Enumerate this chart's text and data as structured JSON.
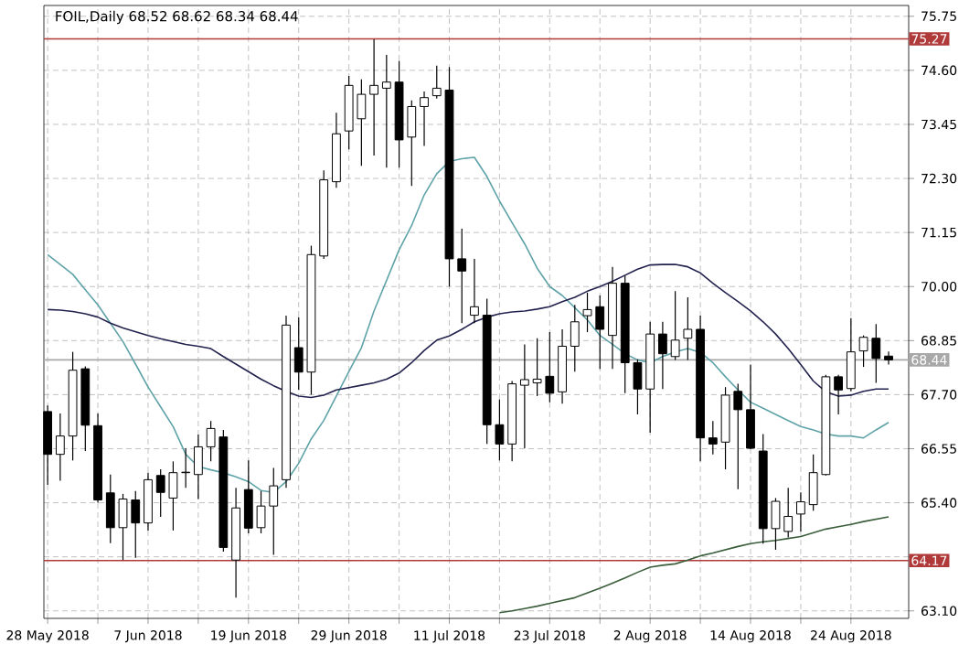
{
  "chart_data": {
    "type": "candlestick",
    "title": "FOIL,Daily 68.52 68.62 68.34 68.44",
    "categories": [
      "28 May 2018",
      null,
      null,
      null,
      null,
      null,
      null,
      null,
      "7 Jun 2018",
      null,
      null,
      null,
      null,
      null,
      null,
      null,
      "19 Jun 2018",
      null,
      null,
      null,
      null,
      null,
      null,
      null,
      "29 Jun 2018",
      null,
      null,
      null,
      null,
      null,
      null,
      null,
      "11 Jul 2018",
      null,
      null,
      null,
      null,
      null,
      null,
      null,
      "23 Jul 2018",
      null,
      null,
      null,
      null,
      null,
      null,
      null,
      "2 Aug 2018",
      null,
      null,
      null,
      null,
      null,
      null,
      null,
      "14 Aug 2018",
      null,
      null,
      null,
      null,
      null,
      null,
      null,
      "24 Aug 2018",
      null,
      null,
      null
    ],
    "ohlc": [
      [
        67.34,
        67.47,
        65.78,
        66.43
      ],
      [
        66.43,
        67.3,
        65.87,
        66.82
      ],
      [
        66.82,
        68.61,
        66.3,
        68.22
      ],
      [
        68.25,
        68.3,
        66.5,
        67.05
      ],
      [
        67.04,
        67.3,
        65.4,
        65.46
      ],
      [
        65.61,
        66.0,
        64.54,
        64.87
      ],
      [
        64.87,
        65.59,
        64.18,
        65.48
      ],
      [
        65.46,
        65.65,
        64.23,
        64.97
      ],
      [
        64.97,
        66.04,
        64.81,
        65.89
      ],
      [
        65.98,
        66.11,
        65.1,
        65.62
      ],
      [
        65.5,
        66.28,
        64.81,
        66.04
      ],
      [
        66.04,
        66.56,
        65.72,
        66.05
      ],
      [
        66.0,
        66.85,
        65.48,
        66.59
      ],
      [
        66.59,
        67.14,
        66.28,
        66.98
      ],
      [
        66.8,
        66.95,
        64.36,
        64.45
      ],
      [
        64.18,
        65.72,
        63.38,
        65.29
      ],
      [
        65.68,
        66.3,
        64.75,
        64.86
      ],
      [
        64.87,
        65.65,
        64.75,
        65.33
      ],
      [
        65.33,
        66.14,
        64.29,
        65.76
      ],
      [
        65.89,
        69.38,
        65.72,
        69.18
      ],
      [
        68.7,
        69.35,
        67.8,
        68.18
      ],
      [
        68.18,
        70.87,
        67.7,
        70.68
      ],
      [
        70.65,
        72.47,
        70.59,
        72.27
      ],
      [
        72.23,
        73.7,
        72.1,
        73.25
      ],
      [
        73.31,
        74.48,
        72.92,
        74.28
      ],
      [
        73.57,
        74.41,
        72.57,
        74.09
      ],
      [
        74.09,
        75.26,
        72.79,
        74.28
      ],
      [
        74.22,
        74.93,
        72.53,
        74.35
      ],
      [
        74.35,
        74.8,
        72.53,
        73.12
      ],
      [
        73.18,
        73.96,
        72.14,
        73.83
      ],
      [
        73.83,
        74.15,
        72.99,
        74.02
      ],
      [
        74.06,
        74.7,
        74.0,
        74.22
      ],
      [
        74.18,
        74.67,
        70.0,
        70.59
      ],
      [
        70.59,
        71.23,
        69.22,
        70.33
      ],
      [
        69.39,
        70.59,
        69.22,
        69.57
      ],
      [
        69.39,
        69.74,
        66.65,
        67.06
      ],
      [
        67.06,
        67.6,
        66.3,
        66.65
      ],
      [
        66.65,
        67.99,
        66.28,
        67.93
      ],
      [
        67.9,
        68.77,
        66.56,
        68.02
      ],
      [
        67.95,
        68.9,
        67.67,
        68.03
      ],
      [
        68.09,
        69.03,
        67.54,
        67.73
      ],
      [
        67.76,
        69.09,
        67.51,
        68.73
      ],
      [
        68.73,
        69.61,
        68.19,
        69.25
      ],
      [
        69.38,
        69.87,
        69.03,
        69.51
      ],
      [
        69.57,
        69.81,
        68.25,
        69.09
      ],
      [
        68.96,
        70.42,
        68.25,
        70.07
      ],
      [
        70.07,
        70.23,
        67.73,
        68.38
      ],
      [
        68.38,
        68.45,
        67.28,
        67.82
      ],
      [
        67.82,
        69.25,
        66.89,
        68.99
      ],
      [
        68.99,
        69.25,
        67.82,
        68.57
      ],
      [
        68.51,
        69.9,
        68.44,
        68.86
      ],
      [
        68.9,
        69.77,
        68.44,
        69.09
      ],
      [
        69.09,
        69.38,
        66.28,
        66.78
      ],
      [
        66.78,
        67.14,
        66.43,
        66.65
      ],
      [
        66.69,
        67.86,
        66.11,
        67.69
      ],
      [
        67.77,
        67.93,
        65.69,
        67.38
      ],
      [
        67.38,
        68.34,
        66.54,
        66.56
      ],
      [
        66.5,
        66.86,
        64.53,
        64.85
      ],
      [
        64.85,
        65.5,
        64.4,
        65.43
      ],
      [
        64.79,
        65.72,
        64.66,
        65.11
      ],
      [
        65.16,
        65.62,
        64.79,
        65.42
      ],
      [
        65.36,
        66.43,
        65.23,
        66.04
      ],
      [
        66.0,
        68.12,
        65.98,
        68.08
      ],
      [
        68.08,
        68.12,
        67.28,
        67.8
      ],
      [
        67.83,
        69.33,
        67.77,
        68.61
      ],
      [
        68.63,
        68.96,
        68.29,
        68.92
      ],
      [
        68.9,
        69.2,
        67.95,
        68.47
      ],
      [
        68.52,
        68.62,
        68.34,
        68.44
      ]
    ],
    "series": [
      {
        "type": "line",
        "color": "#5fa3a8",
        "values": [
          70.68,
          70.47,
          70.26,
          69.93,
          69.61,
          69.22,
          68.83,
          68.35,
          67.86,
          67.44,
          67.02,
          66.43,
          66.17,
          66.1,
          66.04,
          65.95,
          65.85,
          65.66,
          65.62,
          65.85,
          66.24,
          66.76,
          67.15,
          67.67,
          68.19,
          68.7,
          69.48,
          70.13,
          70.78,
          71.3,
          71.95,
          72.4,
          72.66,
          72.72,
          72.75,
          72.34,
          71.82,
          71.36,
          70.91,
          70.39,
          70.0,
          69.81,
          69.55,
          69.29,
          68.96,
          68.77,
          68.57,
          68.44,
          68.38,
          68.51,
          68.61,
          68.68,
          68.6,
          68.38,
          68.08,
          67.8,
          67.54,
          67.41,
          67.28,
          67.15,
          67.02,
          66.95,
          66.86,
          66.82,
          66.82,
          66.78,
          66.95,
          67.11
        ]
      },
      {
        "type": "line",
        "color": "#22224e",
        "values": [
          69.51,
          69.5,
          69.47,
          69.42,
          69.35,
          69.22,
          69.12,
          69.04,
          68.96,
          68.89,
          68.83,
          68.77,
          68.73,
          68.68,
          68.51,
          68.35,
          68.19,
          68.03,
          67.89,
          67.77,
          67.67,
          67.64,
          67.69,
          67.8,
          67.85,
          67.9,
          67.95,
          68.03,
          68.16,
          68.38,
          68.64,
          68.86,
          68.95,
          69.09,
          69.25,
          69.35,
          69.42,
          69.46,
          69.48,
          69.52,
          69.57,
          69.68,
          69.77,
          69.9,
          70.0,
          70.11,
          70.24,
          70.37,
          70.46,
          70.47,
          70.47,
          70.42,
          70.29,
          70.07,
          69.87,
          69.68,
          69.48,
          69.25,
          68.99,
          68.68,
          68.34,
          67.99,
          67.76,
          67.67,
          67.69,
          67.77,
          67.82,
          67.82
        ]
      },
      {
        "type": "line",
        "color": "#3a5e3a",
        "values": [
          null,
          null,
          null,
          null,
          null,
          null,
          null,
          null,
          null,
          null,
          null,
          null,
          null,
          null,
          null,
          null,
          null,
          null,
          null,
          null,
          null,
          null,
          null,
          null,
          null,
          null,
          null,
          null,
          null,
          null,
          null,
          null,
          null,
          null,
          null,
          null,
          63.06,
          63.1,
          63.15,
          63.2,
          63.26,
          63.32,
          63.38,
          63.48,
          63.58,
          63.69,
          63.8,
          63.92,
          64.03,
          64.07,
          64.1,
          64.18,
          64.27,
          64.33,
          64.4,
          64.47,
          64.53,
          64.57,
          64.6,
          64.64,
          64.68,
          64.76,
          64.84,
          64.89,
          64.94,
          65.0,
          65.05,
          65.1
        ]
      }
    ],
    "ylim": [
      62.94,
      75.98
    ],
    "yticks": [
      {
        "value": 63.1,
        "label": "63.10"
      },
      {
        "value": 64.25,
        "label": null
      },
      {
        "value": 65.4,
        "label": "65.40"
      },
      {
        "value": 66.55,
        "label": "66.55"
      },
      {
        "value": 67.7,
        "label": "67.70"
      },
      {
        "value": 68.85,
        "label": "68.85"
      },
      {
        "value": 70.0,
        "label": "70.00"
      },
      {
        "value": 71.15,
        "label": "71.15"
      },
      {
        "value": 72.3,
        "label": "72.30"
      },
      {
        "value": 73.45,
        "label": "73.45"
      },
      {
        "value": 74.6,
        "label": "74.60"
      },
      {
        "value": 75.75,
        "label": "75.75"
      }
    ],
    "ref_lines": [
      {
        "axis": "y",
        "value": 75.27,
        "label": "75.27",
        "color": "#b03a3a"
      },
      {
        "axis": "y",
        "value": 64.17,
        "label": "64.17",
        "color": "#b03a3a"
      },
      {
        "axis": "y",
        "value": 68.44,
        "label": "68.44",
        "color": "#a8a8a8"
      }
    ],
    "grid": true
  }
}
